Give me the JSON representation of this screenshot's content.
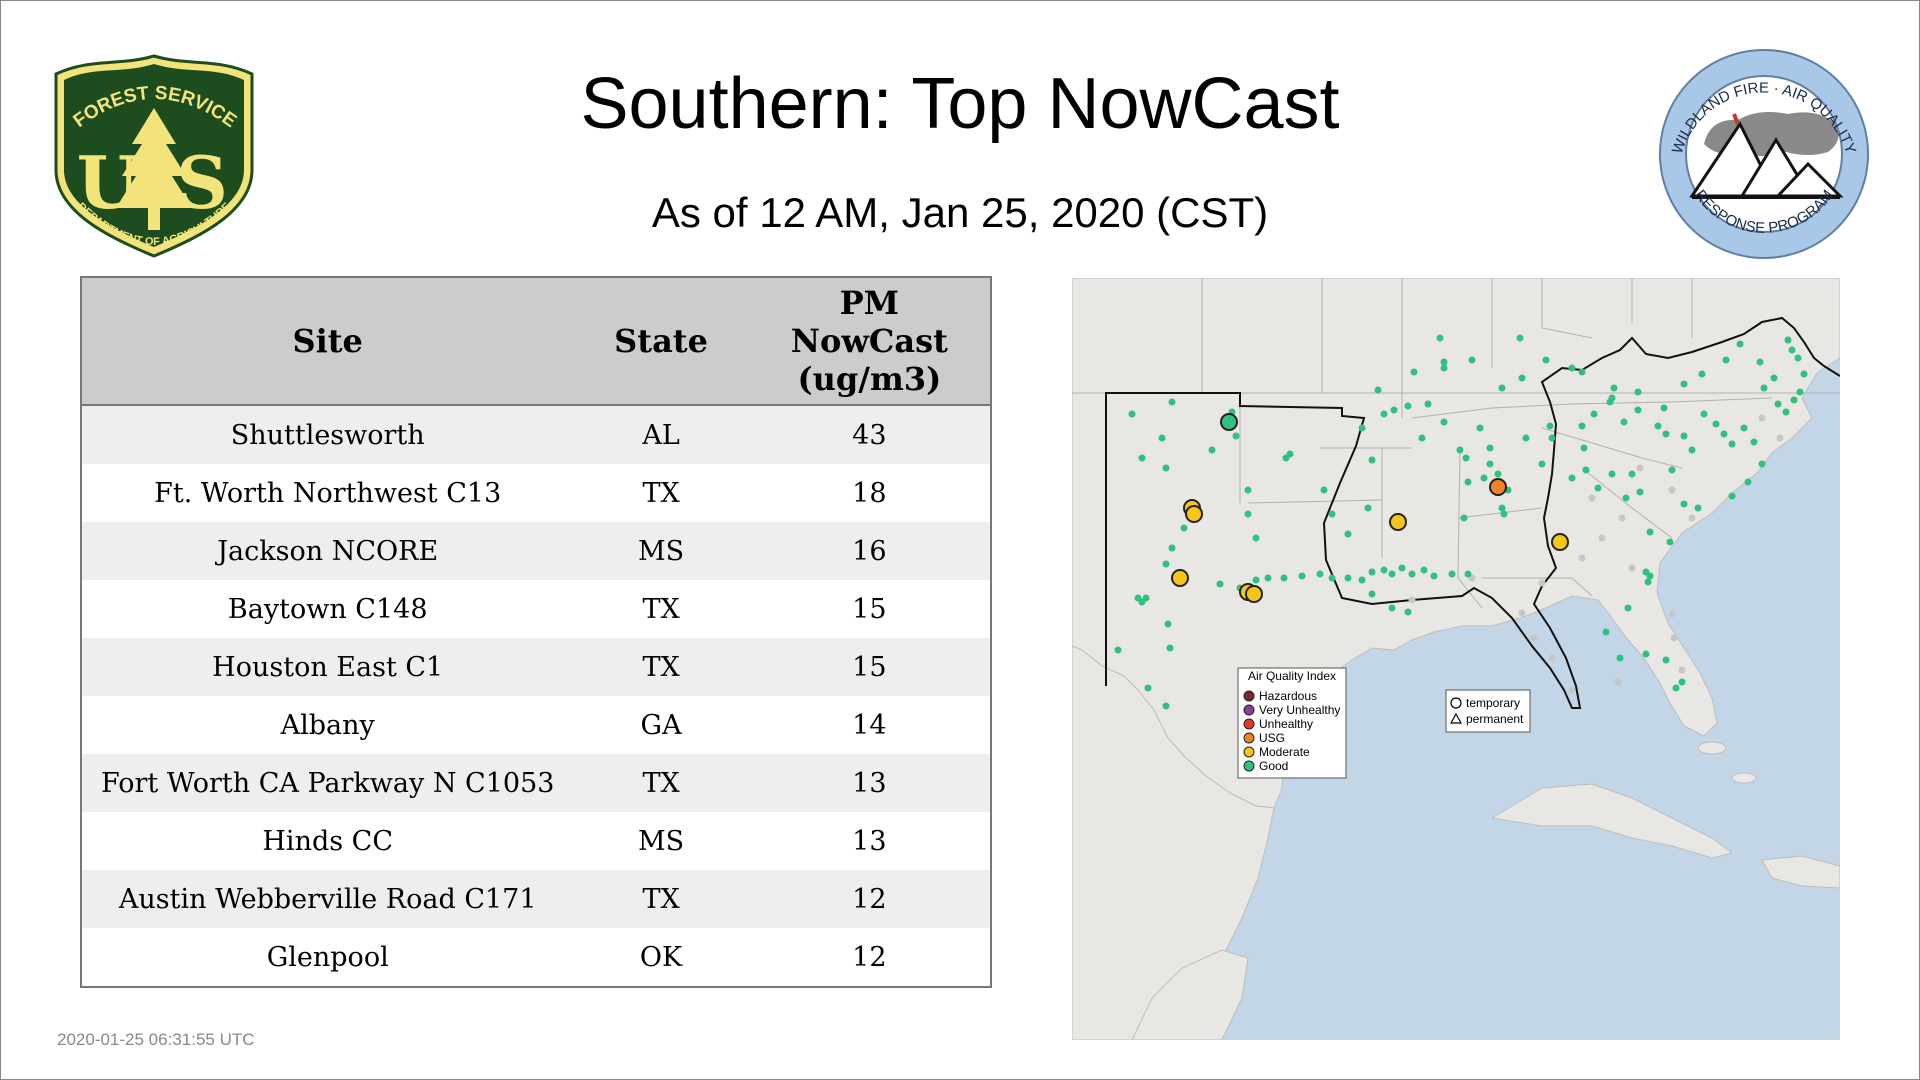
{
  "title": "Southern: Top NowCast",
  "subtitle": "As of 12 AM, Jan 25, 2020 (CST)",
  "logos": {
    "forest_service": {
      "top_text": "FOREST SERVICE",
      "letters": "U S",
      "bottom_text": "DEPARTMENT OF AGRICULTURE",
      "color": "#1d4d1f",
      "accent": "#f2e47a"
    },
    "wildland_fire": {
      "top_text": "WILDLAND FIRE · AIR QUALITY",
      "bottom_text": "RESPONSE PROGRAM",
      "color": "#a9c7e6"
    }
  },
  "table": {
    "headers": {
      "site": "Site",
      "state": "State",
      "pm_line1": "PM",
      "pm_line2": "NowCast",
      "pm_line3": "(ug/m3)"
    },
    "rows": [
      {
        "site": "Shuttlesworth",
        "state": "AL",
        "value": "43"
      },
      {
        "site": "Ft. Worth Northwest C13",
        "state": "TX",
        "value": "18"
      },
      {
        "site": "Jackson NCORE",
        "state": "MS",
        "value": "16"
      },
      {
        "site": "Baytown C148",
        "state": "TX",
        "value": "15"
      },
      {
        "site": "Houston East C1",
        "state": "TX",
        "value": "15"
      },
      {
        "site": "Albany",
        "state": "GA",
        "value": "14"
      },
      {
        "site": "Fort Worth CA Parkway N C1053",
        "state": "TX",
        "value": "13"
      },
      {
        "site": "Hinds CC",
        "state": "MS",
        "value": "13"
      },
      {
        "site": "Austin Webberville Road C171",
        "state": "TX",
        "value": "12"
      },
      {
        "site": "Glenpool",
        "state": "OK",
        "value": "12"
      }
    ]
  },
  "map": {
    "legend": {
      "title": "Air Quality Index",
      "items": [
        {
          "label": "Hazardous",
          "color": "#7e2535"
        },
        {
          "label": "Very Unhealthy",
          "color": "#8f3f97"
        },
        {
          "label": "Unhealthy",
          "color": "#e8352b"
        },
        {
          "label": "USG",
          "color": "#f0832a"
        },
        {
          "label": "Moderate",
          "color": "#f5c518"
        },
        {
          "label": "Good",
          "color": "#2ec27e"
        }
      ]
    },
    "shape_legend": {
      "temporary": "temporary",
      "permanent": "permanent"
    },
    "colors": {
      "water": "#c3d6e8",
      "land": "#e9e7e3",
      "good": "#2ec27e",
      "moderate": "#f5c518",
      "usg": "#f0832a",
      "inactive": "#c6c6c6"
    }
  },
  "timestamp": "2020-01-25 06:31:55 UTC"
}
